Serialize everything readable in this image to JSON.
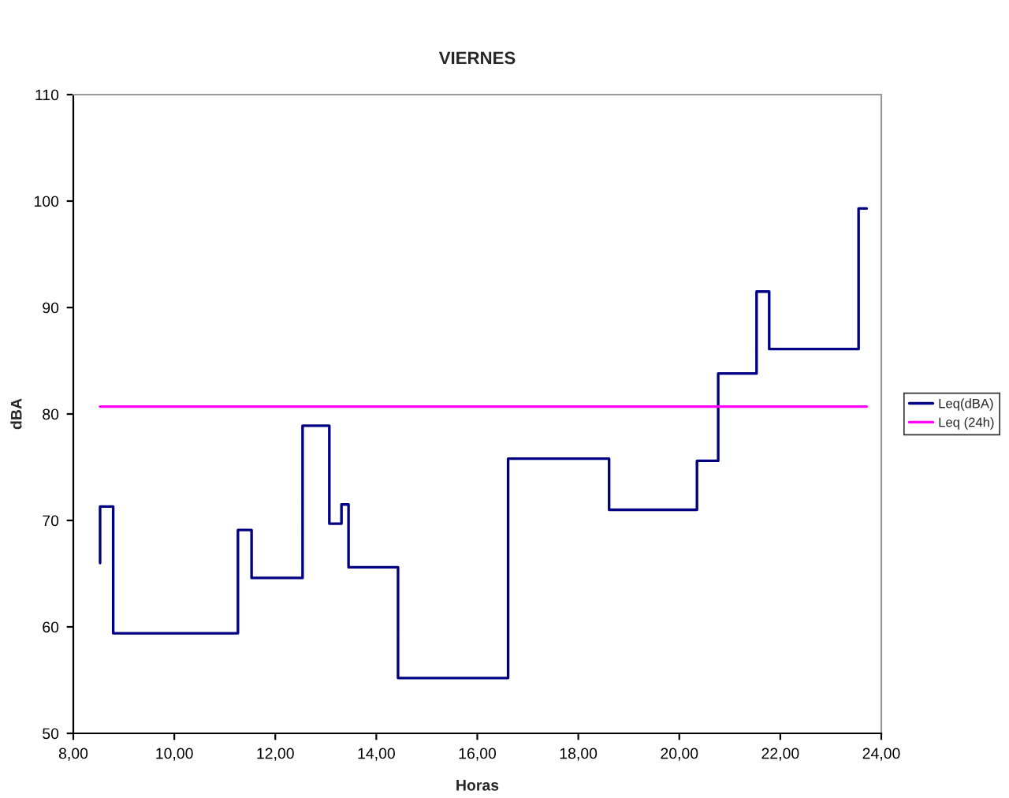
{
  "chart_data": {
    "type": "step",
    "title": "VIERNES",
    "xlabel": "Horas",
    "ylabel": "dBA",
    "series": [
      {
        "name": "Leq(dBA)",
        "color": "#000080",
        "x": [
          8.53,
          8.53,
          8.79,
          11.26,
          11.53,
          12.54,
          13.07,
          13.31,
          13.45,
          14.43,
          16.61,
          18.61,
          20.35,
          20.77,
          21.53,
          21.78,
          23.55,
          23.71
        ],
        "values": [
          66.0,
          71.3,
          59.4,
          69.1,
          64.6,
          78.9,
          69.7,
          71.5,
          65.6,
          55.2,
          75.8,
          71.0,
          75.6,
          83.8,
          91.5,
          86.1,
          99.3,
          99.3
        ]
      },
      {
        "name": "Leq (24h)",
        "color": "#ff00ff",
        "type": "line",
        "x": [
          8.53,
          23.71
        ],
        "values": [
          80.7,
          80.7
        ]
      }
    ],
    "xlim": [
      8,
      24
    ],
    "xticks": [
      {
        "value": 8,
        "label": "8,00"
      },
      {
        "value": 10,
        "label": "10,00"
      },
      {
        "value": 12,
        "label": "12,00"
      },
      {
        "value": 14,
        "label": "14,00"
      },
      {
        "value": 16,
        "label": "16,00"
      },
      {
        "value": 18,
        "label": "18,00"
      },
      {
        "value": 20,
        "label": "20,00"
      },
      {
        "value": 22,
        "label": "22,00"
      },
      {
        "value": 24,
        "label": "24,00"
      }
    ],
    "ylim": [
      50,
      110
    ],
    "yticks": [
      50,
      60,
      70,
      80,
      90,
      100,
      110
    ],
    "grid": false,
    "legend": "right"
  }
}
